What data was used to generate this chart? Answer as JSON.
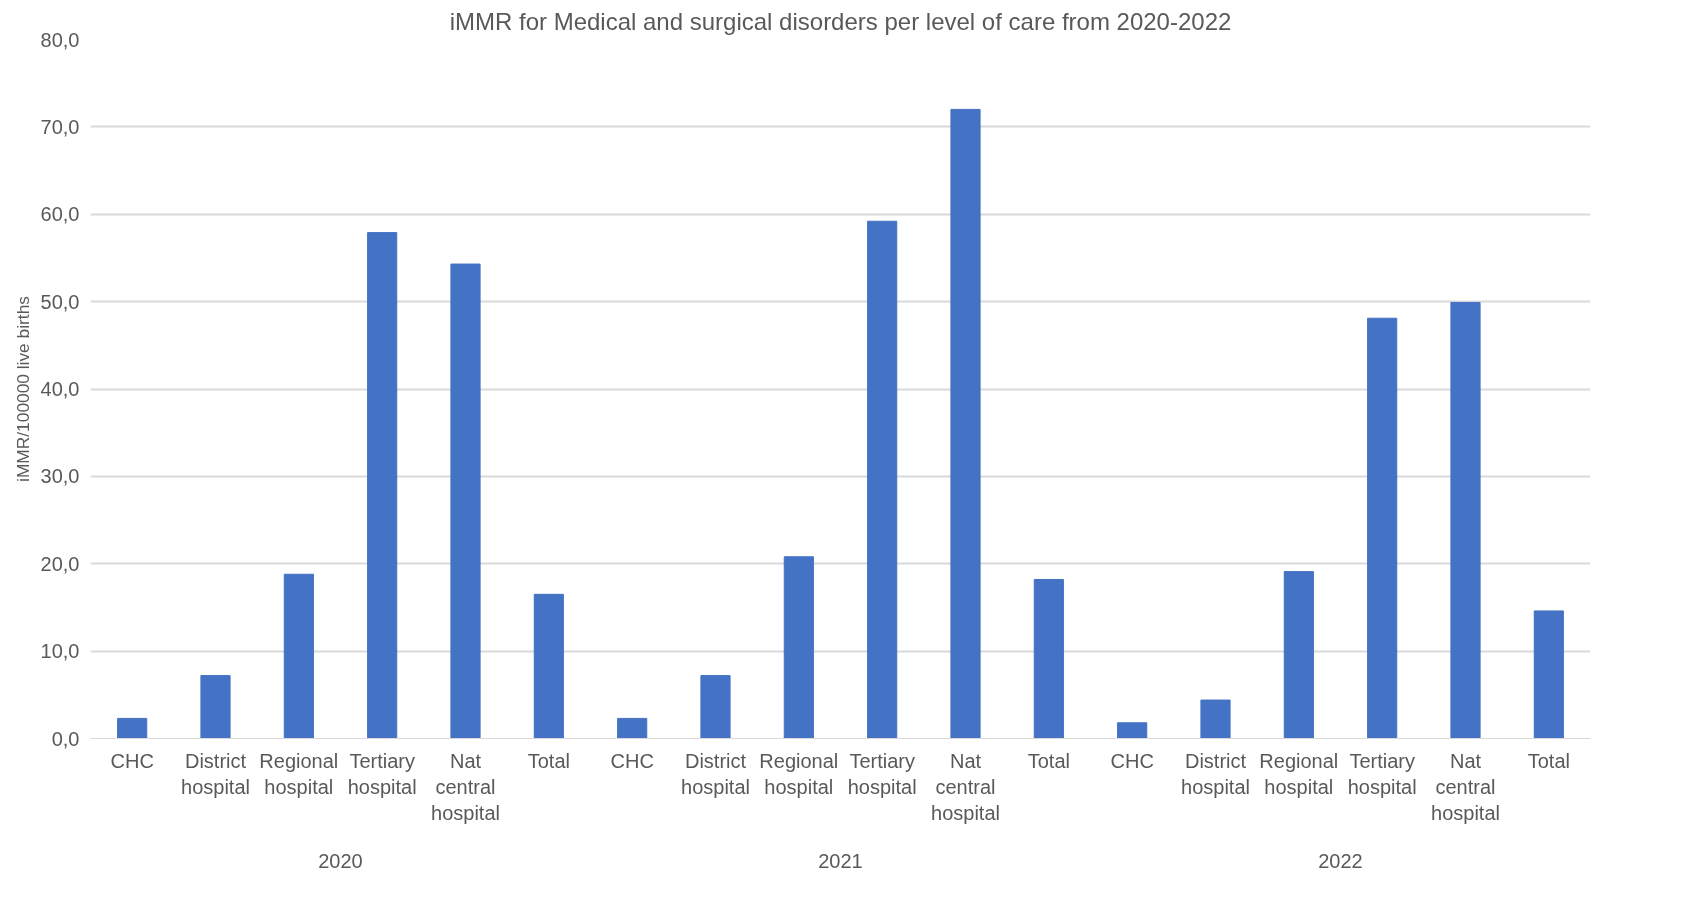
{
  "chart_data": {
    "type": "bar",
    "title": "iMMR for Medical and surgical disorders per level of care from 2020-2022",
    "ylabel": "iMMR/100000 live births",
    "categories": [
      "CHC",
      "District hospital",
      "Regional hospital",
      "Tertiary hospital",
      "Nat central hospital",
      "Total",
      "CHC",
      "District hospital",
      "Regional hospital",
      "Tertiary hospital",
      "Nat central hospital",
      "Total",
      "CHC",
      "District hospital",
      "Regional hospital",
      "Tertiary hospital",
      "Nat central hospital",
      "Total"
    ],
    "series": [
      {
        "color": "#4472c4",
        "values": [
          2.3,
          7.2,
          18.8,
          57.9,
          54.3,
          16.5,
          2.3,
          7.2,
          20.8,
          59.2,
          72.0,
          18.2,
          1.8,
          4.4,
          19.1,
          48.1,
          49.9,
          14.6
        ]
      }
    ],
    "annotations": [
      "2020",
      "2021",
      "2022"
    ],
    "ylim": [
      0,
      80
    ],
    "yticks": [
      {
        "value": 0,
        "label": "0,0"
      },
      {
        "value": 10,
        "label": "10,0"
      },
      {
        "value": 20,
        "label": "20,0"
      },
      {
        "value": 30,
        "label": "30,0"
      },
      {
        "value": 40,
        "label": "40,0"
      },
      {
        "value": 50,
        "label": "50,0"
      },
      {
        "value": 60,
        "label": "60,0"
      },
      {
        "value": 70,
        "label": "70,0"
      },
      {
        "value": 80,
        "label": "80,0"
      }
    ],
    "grid": "y"
  }
}
